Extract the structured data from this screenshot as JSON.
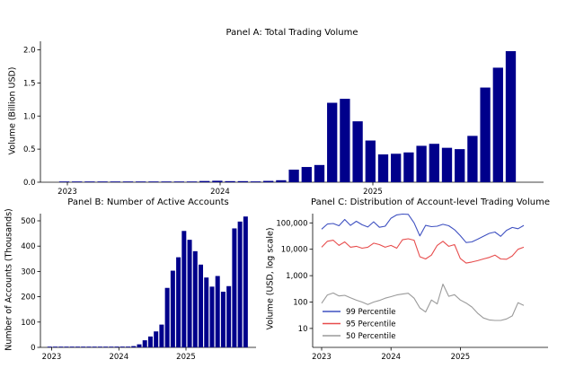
{
  "figure": {
    "background": "#ffffff",
    "axis_color": "#000000",
    "bar_color": "#00008b",
    "line_colors": {
      "p99": "#3f51c1",
      "p95": "#e74c4c",
      "p50": "#9a9a9a"
    }
  },
  "months": [
    "2023-01",
    "2023-02",
    "2023-03",
    "2023-04",
    "2023-05",
    "2023-06",
    "2023-07",
    "2023-08",
    "2023-09",
    "2023-10",
    "2023-11",
    "2023-12",
    "2024-01",
    "2024-02",
    "2024-03",
    "2024-04",
    "2024-05",
    "2024-06",
    "2024-07",
    "2024-08",
    "2024-09",
    "2024-10",
    "2024-11",
    "2024-12",
    "2025-01",
    "2025-02",
    "2025-03",
    "2025-04",
    "2025-05",
    "2025-06",
    "2025-07",
    "2025-08",
    "2025-09",
    "2025-10",
    "2025-11",
    "2025-12"
  ],
  "chart_data": [
    {
      "id": "panel-a",
      "type": "bar",
      "title": "Panel A: Total Trading Volume",
      "ylabel": "Volume (Billion USD)",
      "xlabel": "",
      "x_tick_labels": [
        "2023",
        "2024",
        "2025"
      ],
      "y_ticks": [
        0.0,
        0.5,
        1.0,
        1.5,
        2.0
      ],
      "y_tick_labels": [
        "0.0",
        "0.5",
        "1.0",
        "1.5",
        "2.0"
      ],
      "ylim": [
        0,
        2.13
      ],
      "grid": false,
      "bar_color": "#00008b",
      "values": [
        0.002,
        0.002,
        0.003,
        0.002,
        0.002,
        0.003,
        0.003,
        0.004,
        0.004,
        0.005,
        0.008,
        0.018,
        0.022,
        0.016,
        0.016,
        0.012,
        0.02,
        0.03,
        0.19,
        0.23,
        0.26,
        1.2,
        1.26,
        0.92,
        0.63,
        0.42,
        0.43,
        0.45,
        0.55,
        0.58,
        0.52,
        0.5,
        0.7,
        1.43,
        1.73,
        1.98
      ]
    },
    {
      "id": "panel-b",
      "type": "bar",
      "title": "Panel B: Number of Active Accounts",
      "ylabel": "Number of Accounts (Thousands)",
      "xlabel": "",
      "x_tick_labels": [
        "2023",
        "2024",
        "2025"
      ],
      "y_ticks": [
        0,
        100,
        200,
        300,
        400,
        500
      ],
      "y_tick_labels": [
        "0",
        "100",
        "200",
        "300",
        "400",
        "500"
      ],
      "ylim": [
        0,
        530
      ],
      "grid": false,
      "bar_color": "#00008b",
      "values": [
        1,
        1,
        2,
        1,
        1,
        1,
        2,
        1,
        1,
        2,
        2,
        2,
        3,
        3,
        3,
        5,
        12,
        28,
        43,
        63,
        90,
        235,
        303,
        356,
        460,
        425,
        380,
        327,
        276,
        240,
        282,
        220,
        242,
        470,
        497,
        517
      ]
    },
    {
      "id": "panel-c",
      "type": "line",
      "yscale": "log",
      "title": "Panel C: Distribution of Account-level Trading Volume",
      "ylabel": "Volume (USD, log scale)",
      "xlabel": "",
      "x_tick_labels": [
        "2023",
        "2024",
        "2025"
      ],
      "y_ticks": [
        10,
        100,
        1000,
        10000,
        100000
      ],
      "y_tick_labels": [
        "10",
        "100",
        "1,000",
        "10,000",
        "100,000"
      ],
      "ylim": [
        3,
        300000
      ],
      "grid": false,
      "legend": {
        "position": "lower left",
        "entries": [
          "99 Percentile",
          "95 Percentile",
          "50 Percentile"
        ]
      },
      "series": [
        {
          "name": "99 Percentile",
          "color": "#3f51c1",
          "values": [
            58000,
            90000,
            95000,
            78000,
            135000,
            80000,
            115000,
            85000,
            70000,
            110000,
            68000,
            75000,
            150000,
            200000,
            215000,
            210000,
            100000,
            32000,
            80000,
            72000,
            75000,
            88000,
            78000,
            55000,
            33000,
            18000,
            19000,
            24000,
            31000,
            40000,
            45000,
            31000,
            52000,
            67000,
            60000,
            80000
          ]
        },
        {
          "name": "95 Percentile",
          "color": "#e74c4c",
          "values": [
            12000,
            20000,
            22000,
            14000,
            19000,
            12000,
            13000,
            11000,
            12000,
            17000,
            15000,
            12000,
            14000,
            11000,
            23000,
            25000,
            22000,
            5200,
            4300,
            6000,
            14000,
            20000,
            13000,
            15000,
            4500,
            3000,
            3300,
            3700,
            4300,
            4900,
            6000,
            4300,
            4200,
            5600,
            10000,
            12000
          ]
        },
        {
          "name": "50 Percentile",
          "color": "#9a9a9a",
          "values": [
            90,
            185,
            220,
            170,
            180,
            145,
            118,
            100,
            80,
            100,
            115,
            140,
            160,
            185,
            200,
            215,
            140,
            60,
            42,
            120,
            85,
            480,
            165,
            190,
            120,
            92,
            65,
            38,
            25,
            21,
            20,
            20,
            23,
            30,
            95,
            75
          ]
        }
      ]
    }
  ]
}
